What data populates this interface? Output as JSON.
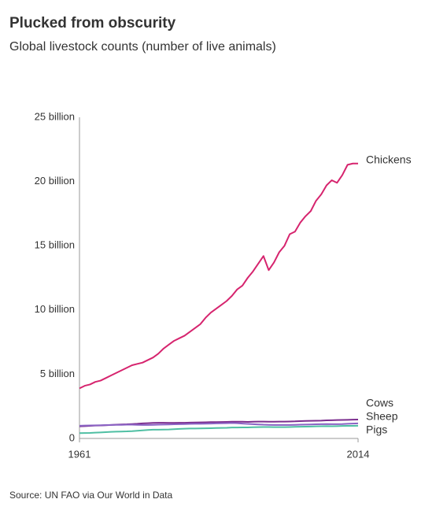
{
  "chart_data": {
    "type": "line",
    "title": "Plucked from obscurity",
    "subtitle": "Global livestock counts (number of live animals)",
    "source": "Source: UN FAO via Our World in Data",
    "x": [
      1961,
      1962,
      1963,
      1964,
      1965,
      1966,
      1967,
      1968,
      1969,
      1970,
      1971,
      1972,
      1973,
      1974,
      1975,
      1976,
      1977,
      1978,
      1979,
      1980,
      1981,
      1982,
      1983,
      1984,
      1985,
      1986,
      1987,
      1988,
      1989,
      1990,
      1991,
      1992,
      1993,
      1994,
      1995,
      1996,
      1997,
      1998,
      1999,
      2000,
      2001,
      2002,
      2003,
      2004,
      2005,
      2006,
      2007,
      2008,
      2009,
      2010,
      2011,
      2012,
      2013,
      2014
    ],
    "xlim": [
      1961,
      2014
    ],
    "xticks": [
      1961,
      2014
    ],
    "ylim": [
      0,
      25
    ],
    "yticks": [
      0,
      {
        "value": 5,
        "label": "5 billion"
      },
      {
        "value": 10,
        "label": "10 billion"
      },
      {
        "value": 15,
        "label": "15 billion"
      },
      {
        "value": 20,
        "label": "20 billion"
      },
      {
        "value": 25,
        "label": "25 billion"
      }
    ],
    "grid": false,
    "series": [
      {
        "name": "Chickens",
        "color": "#d6246e",
        "values": [
          3.9,
          4.1,
          4.2,
          4.4,
          4.5,
          4.7,
          4.9,
          5.1,
          5.3,
          5.5,
          5.7,
          5.8,
          5.9,
          6.1,
          6.3,
          6.6,
          7.0,
          7.3,
          7.6,
          7.8,
          8.0,
          8.3,
          8.6,
          8.9,
          9.4,
          9.8,
          10.1,
          10.4,
          10.7,
          11.1,
          11.6,
          11.9,
          12.5,
          13.0,
          13.6,
          14.2,
          13.1,
          13.7,
          14.5,
          15.0,
          15.9,
          16.1,
          16.8,
          17.3,
          17.7,
          18.5,
          19.0,
          19.7,
          20.1,
          19.9,
          20.5,
          21.3,
          21.4,
          21.4
        ]
      },
      {
        "name": "Cows",
        "color": "#7b2d8e",
        "values": [
          0.94,
          0.96,
          0.98,
          1.0,
          1.01,
          1.03,
          1.05,
          1.07,
          1.09,
          1.1,
          1.12,
          1.14,
          1.17,
          1.19,
          1.21,
          1.22,
          1.22,
          1.21,
          1.21,
          1.22,
          1.22,
          1.23,
          1.24,
          1.25,
          1.26,
          1.27,
          1.27,
          1.28,
          1.29,
          1.3,
          1.3,
          1.3,
          1.29,
          1.3,
          1.31,
          1.31,
          1.3,
          1.3,
          1.31,
          1.31,
          1.32,
          1.33,
          1.35,
          1.36,
          1.37,
          1.38,
          1.39,
          1.41,
          1.42,
          1.43,
          1.44,
          1.45,
          1.46,
          1.47
        ]
      },
      {
        "name": "Sheep",
        "color": "#8a63c4",
        "values": [
          0.99,
          1.0,
          1.01,
          1.02,
          1.03,
          1.04,
          1.05,
          1.06,
          1.06,
          1.07,
          1.07,
          1.06,
          1.05,
          1.05,
          1.06,
          1.07,
          1.08,
          1.09,
          1.1,
          1.11,
          1.12,
          1.13,
          1.14,
          1.14,
          1.15,
          1.16,
          1.17,
          1.18,
          1.19,
          1.2,
          1.19,
          1.16,
          1.13,
          1.11,
          1.09,
          1.07,
          1.06,
          1.05,
          1.05,
          1.05,
          1.05,
          1.06,
          1.07,
          1.08,
          1.09,
          1.1,
          1.11,
          1.12,
          1.11,
          1.11,
          1.12,
          1.14,
          1.16,
          1.17
        ]
      },
      {
        "name": "Pigs",
        "color": "#4fbfa3",
        "values": [
          0.41,
          0.42,
          0.43,
          0.45,
          0.47,
          0.49,
          0.51,
          0.53,
          0.54,
          0.55,
          0.57,
          0.6,
          0.63,
          0.66,
          0.68,
          0.68,
          0.69,
          0.7,
          0.72,
          0.74,
          0.76,
          0.77,
          0.77,
          0.78,
          0.79,
          0.8,
          0.81,
          0.82,
          0.83,
          0.85,
          0.85,
          0.86,
          0.86,
          0.87,
          0.88,
          0.89,
          0.89,
          0.88,
          0.88,
          0.88,
          0.89,
          0.9,
          0.91,
          0.92,
          0.93,
          0.94,
          0.95,
          0.96,
          0.95,
          0.96,
          0.97,
          0.98,
          0.98,
          0.99
        ]
      }
    ]
  }
}
